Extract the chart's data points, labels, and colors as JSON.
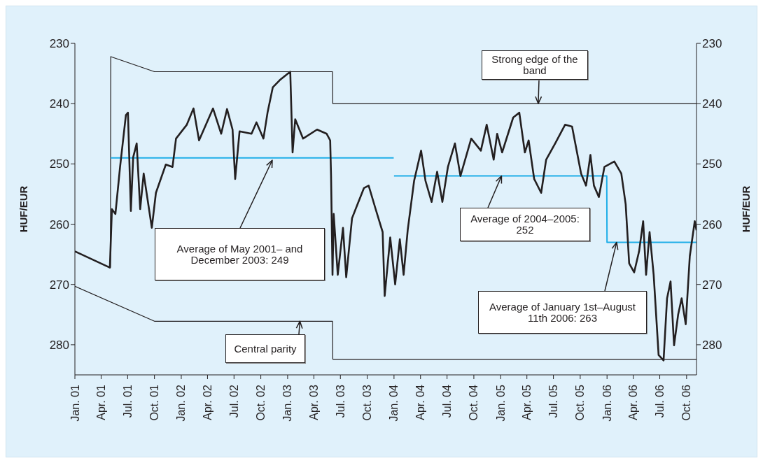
{
  "chart_data": {
    "type": "line",
    "ylabel": "HUF/EUR",
    "y2label": "HUF/EUR",
    "xlim": [
      "2001-01-01",
      "2006-11-04"
    ],
    "xticks": [
      {
        "value": "2001-01-01",
        "label": "Jan. 01"
      },
      {
        "value": "2001-04-01",
        "label": "Apr. 01"
      },
      {
        "value": "2001-07-01",
        "label": "Jul. 01"
      },
      {
        "value": "2001-10-01",
        "label": "Oct. 01"
      },
      {
        "value": "2002-01-01",
        "label": "Jan. 02"
      },
      {
        "value": "2002-04-01",
        "label": "Apr. 02"
      },
      {
        "value": "2002-07-01",
        "label": "Jul. 02"
      },
      {
        "value": "2002-10-01",
        "label": "Oct. 02"
      },
      {
        "value": "2003-01-01",
        "label": "Jan. 03"
      },
      {
        "value": "2003-04-01",
        "label": "Apr. 03"
      },
      {
        "value": "2003-07-01",
        "label": "Jul. 03"
      },
      {
        "value": "2003-10-01",
        "label": "Oct. 03"
      },
      {
        "value": "2004-01-01",
        "label": "Jan. 04"
      },
      {
        "value": "2004-04-01",
        "label": "Apr. 04"
      },
      {
        "value": "2004-07-01",
        "label": "Jul. 04"
      },
      {
        "value": "2004-10-01",
        "label": "Oct. 04"
      },
      {
        "value": "2005-01-01",
        "label": "Jan. 05"
      },
      {
        "value": "2005-04-01",
        "label": "Apr. 05"
      },
      {
        "value": "2005-07-01",
        "label": "Jul. 05"
      },
      {
        "value": "2005-10-01",
        "label": "Oct. 05"
      },
      {
        "value": "2006-01-01",
        "label": "Jan. 06"
      },
      {
        "value": "2006-04-01",
        "label": "Apr. 06"
      },
      {
        "value": "2006-07-01",
        "label": "Jul. 06"
      },
      {
        "value": "2006-10-01",
        "label": "Oct. 06"
      }
    ],
    "ylim": [
      285,
      230
    ],
    "yticks": [
      230,
      240,
      250,
      260,
      270,
      280
    ],
    "y2lim": [
      285,
      230
    ],
    "y2ticks": [
      230,
      240,
      250,
      260,
      270,
      280
    ],
    "grid": false,
    "marker": "none",
    "line_style": "solid",
    "series": [
      {
        "color": "#231f20",
        "x": [
          "2001-05-03",
          "2001-05-04",
          "2001-10-01",
          "2003-06-04",
          "2003-06-05",
          "2006-11-04"
        ],
        "values": [
          267.2,
          232.2,
          234.7,
          234.7,
          240,
          240
        ]
      },
      {
        "color": "#231f20",
        "x": [
          "2001-01-01",
          "2001-10-01",
          "2003-06-04",
          "2003-06-05",
          "2006-11-04"
        ],
        "values": [
          270.3,
          276.1,
          276.1,
          282.4,
          282.4
        ]
      },
      {
        "color": "#1eaee8",
        "x": [
          "2001-05-04",
          "2003-12-31"
        ],
        "values": [
          249,
          249
        ]
      },
      {
        "color": "#1eaee8",
        "x": [
          "2004-01-01",
          "2005-12-31",
          "2006-01-01",
          "2006-11-04"
        ],
        "values": [
          252,
          252,
          263,
          263
        ]
      },
      {
        "color": "#231f20",
        "x": [
          "2001-01-01",
          "2001-05-01",
          "2001-05-08",
          "2001-05-20",
          "2001-06-05",
          "2001-06-25",
          "2001-07-02",
          "2001-07-12",
          "2001-07-20",
          "2001-08-01",
          "2001-08-13",
          "2001-08-25",
          "2001-09-22",
          "2001-10-06",
          "2001-11-09",
          "2001-12-02",
          "2001-12-14",
          "2002-01-20",
          "2002-02-12",
          "2002-03-03",
          "2002-04-20",
          "2002-05-18",
          "2002-06-07",
          "2002-06-26",
          "2002-07-05",
          "2002-07-20",
          "2002-08-30",
          "2002-09-16",
          "2002-10-10",
          "2002-10-24",
          "2002-11-11",
          "2002-12-05",
          "2003-01-10",
          "2003-01-18",
          "2003-01-27",
          "2003-02-23",
          "2003-04-12",
          "2003-05-15",
          "2003-05-27",
          "2003-05-30",
          "2003-06-04",
          "2003-06-08",
          "2003-06-22",
          "2003-07-10",
          "2003-07-21",
          "2003-08-10",
          "2003-09-20",
          "2003-10-06",
          "2003-10-30",
          "2003-11-23",
          "2003-11-30",
          "2003-12-19",
          "2004-01-05",
          "2004-01-21",
          "2004-02-03",
          "2004-02-17",
          "2004-03-10",
          "2004-04-03",
          "2004-04-18",
          "2004-05-09",
          "2004-05-28",
          "2004-06-15",
          "2004-07-04",
          "2004-07-28",
          "2004-08-16",
          "2004-09-22",
          "2004-10-25",
          "2004-11-14",
          "2004-12-08",
          "2004-12-20",
          "2005-01-06",
          "2005-02-13",
          "2005-03-06",
          "2005-03-25",
          "2005-04-07",
          "2005-04-26",
          "2005-05-20",
          "2005-06-06",
          "2005-07-07",
          "2005-08-10",
          "2005-09-03",
          "2005-10-04",
          "2005-10-21",
          "2005-11-05",
          "2005-11-17",
          "2005-12-04",
          "2005-12-23",
          "2006-01-26",
          "2006-02-19",
          "2006-03-06",
          "2006-03-18",
          "2006-04-04",
          "2006-04-21",
          "2006-05-05",
          "2006-05-15",
          "2006-05-27",
          "2006-06-10",
          "2006-06-27",
          "2006-07-14",
          "2006-07-26",
          "2006-08-07",
          "2006-08-19",
          "2006-09-02",
          "2006-09-14",
          "2006-09-28",
          "2006-10-12",
          "2006-10-29",
          "2006-11-04"
        ],
        "values": [
          264.5,
          267.2,
          257.5,
          258.3,
          250.5,
          241.9,
          241.5,
          257.8,
          248.9,
          246.6,
          257.5,
          251.6,
          260.6,
          254.8,
          250.1,
          250.5,
          245.8,
          243.5,
          240.8,
          246.1,
          240.8,
          245.0,
          240.9,
          244.3,
          252.5,
          244.6,
          245.0,
          243.1,
          245.8,
          241.5,
          237.3,
          236.1,
          234.7,
          248.1,
          242.6,
          245.8,
          244.3,
          245.0,
          246.1,
          252.0,
          268.4,
          258.3,
          268.4,
          260.6,
          268.8,
          259.0,
          254.0,
          253.6,
          257.5,
          261.3,
          271.9,
          262.2,
          270.0,
          262.5,
          268.4,
          261.0,
          252.8,
          247.8,
          252.8,
          256.3,
          251.3,
          256.3,
          250.5,
          246.6,
          252.0,
          245.8,
          247.8,
          243.5,
          249.3,
          245.0,
          248.1,
          242.3,
          241.5,
          248.1,
          246.1,
          252.5,
          254.8,
          249.3,
          246.6,
          243.5,
          243.8,
          251.6,
          253.6,
          248.5,
          253.6,
          255.5,
          250.5,
          249.6,
          251.6,
          256.7,
          266.5,
          268.0,
          264.5,
          259.5,
          268.4,
          261.3,
          268.4,
          281.7,
          282.6,
          272.3,
          269.5,
          280.1,
          275.0,
          272.3,
          276.6,
          265.3,
          259.5,
          261.0
        ]
      }
    ],
    "annotations": [
      {
        "text": "Strong edge of the band",
        "x": "2005-05-10",
        "y": 240
      },
      "Average of May 2001– and December 2003: 249",
      {
        "text": "Average of 2004–2005: 252",
        "x": "2005-01-04",
        "y": 252
      },
      {
        "text": "Average of January 1st–August 11th 2006: 263",
        "x": "2006-02-03",
        "y": 263
      },
      {
        "text": "Central parity",
        "x": "2003-02-12",
        "y": 276.1
      }
    ]
  }
}
